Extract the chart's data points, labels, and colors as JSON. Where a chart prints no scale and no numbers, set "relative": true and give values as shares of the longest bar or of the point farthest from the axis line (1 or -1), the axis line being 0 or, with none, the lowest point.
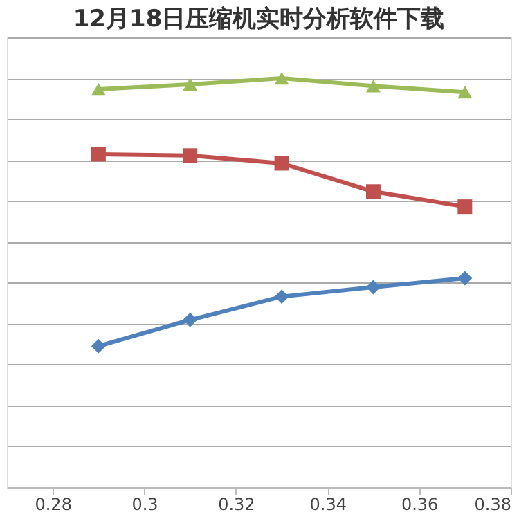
{
  "chart_data": {
    "type": "line",
    "title": "12月18日压缩机实时分析软件下载",
    "relative": true,
    "x": [
      0.29,
      0.31,
      0.33,
      0.35,
      0.37
    ],
    "xlim": [
      0.27,
      0.38
    ],
    "xticks": [
      0.28,
      0.3,
      0.32,
      0.34,
      0.36,
      0.38
    ],
    "grid": "y",
    "series": [
      {
        "color": "#4f81bd",
        "marker": "diamond",
        "values": [
          0.345,
          0.409,
          0.466,
          0.489,
          0.511
        ]
      },
      {
        "color": "#c0504d",
        "marker": "square",
        "values": [
          0.814,
          0.811,
          0.792,
          0.723,
          0.686
        ]
      },
      {
        "color": "#9bbb59",
        "marker": "triangle",
        "values": [
          0.973,
          0.985,
          1,
          0.981,
          0.966
        ]
      }
    ]
  }
}
